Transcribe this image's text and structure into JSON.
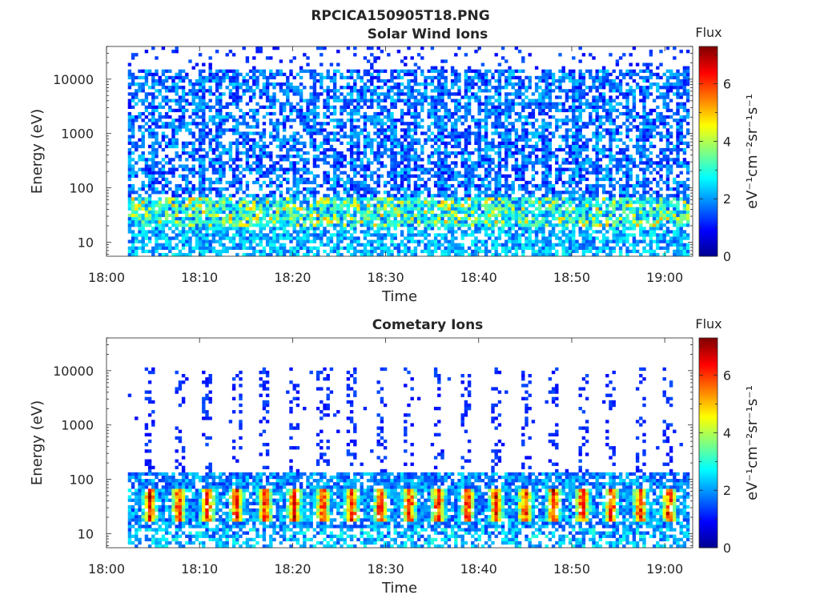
{
  "figure": {
    "title": "RPCICA150905T18.PNG"
  },
  "colormap": {
    "name": "jet",
    "stops": [
      "#00008f",
      "#0000ff",
      "#0080ff",
      "#00ffff",
      "#80ff80",
      "#ffff00",
      "#ff8000",
      "#ff0000",
      "#800000"
    ]
  },
  "chart_data": [
    {
      "type": "heatmap",
      "title": "Solar Wind Ions",
      "xlabel": "Time",
      "ylabel": "Energy (eV)",
      "x_range": [
        "18:00",
        "19:03"
      ],
      "x_ticks": [
        "18:00",
        "18:10",
        "18:20",
        "18:30",
        "18:40",
        "18:50",
        "19:00"
      ],
      "y_scale": "log",
      "y_range": [
        5.5,
        40000
      ],
      "y_ticks": [
        {
          "value": 10,
          "label": "10"
        },
        {
          "value": 100,
          "label": "100"
        },
        {
          "value": 1000,
          "label": "1000"
        },
        {
          "value": 10000,
          "label": "10000"
        }
      ],
      "data_start": "18:02",
      "data_end": "19:03",
      "colorbar": {
        "title": "Flux",
        "label": "eV⁻¹cm⁻²sr⁻¹s⁻¹",
        "range": [
          0,
          7.3
        ],
        "ticks": [
          0,
          2,
          4,
          6
        ]
      },
      "grid": false,
      "pattern": "broadband background flux ~1-3 from 10 eV to 15 keV, sparse points up to 40 keV, enhanced flux ~4-5 near 20-60 eV"
    },
    {
      "type": "heatmap",
      "title": "Cometary Ions",
      "xlabel": "Time",
      "ylabel": "Energy (eV)",
      "x_range": [
        "18:00",
        "19:03"
      ],
      "x_ticks": [
        "18:00",
        "18:10",
        "18:20",
        "18:30",
        "18:40",
        "18:50",
        "19:00"
      ],
      "y_scale": "log",
      "y_range": [
        5.5,
        40000
      ],
      "y_ticks": [
        {
          "value": 10,
          "label": "10"
        },
        {
          "value": 100,
          "label": "100"
        },
        {
          "value": 1000,
          "label": "1000"
        },
        {
          "value": 10000,
          "label": "10000"
        }
      ],
      "data_start": "18:02",
      "data_end": "19:03",
      "colorbar": {
        "title": "Flux",
        "label": "eV⁻¹cm⁻²sr⁻¹s⁻¹",
        "range": [
          0,
          7.3
        ],
        "ticks": [
          0,
          2,
          4,
          6
        ]
      },
      "grid": false,
      "pattern": "intense bursts ~5-7 near 20-50 eV roughly every 3 minutes, background up to 120 eV, sparse vertical streaks to 10 keV"
    }
  ]
}
